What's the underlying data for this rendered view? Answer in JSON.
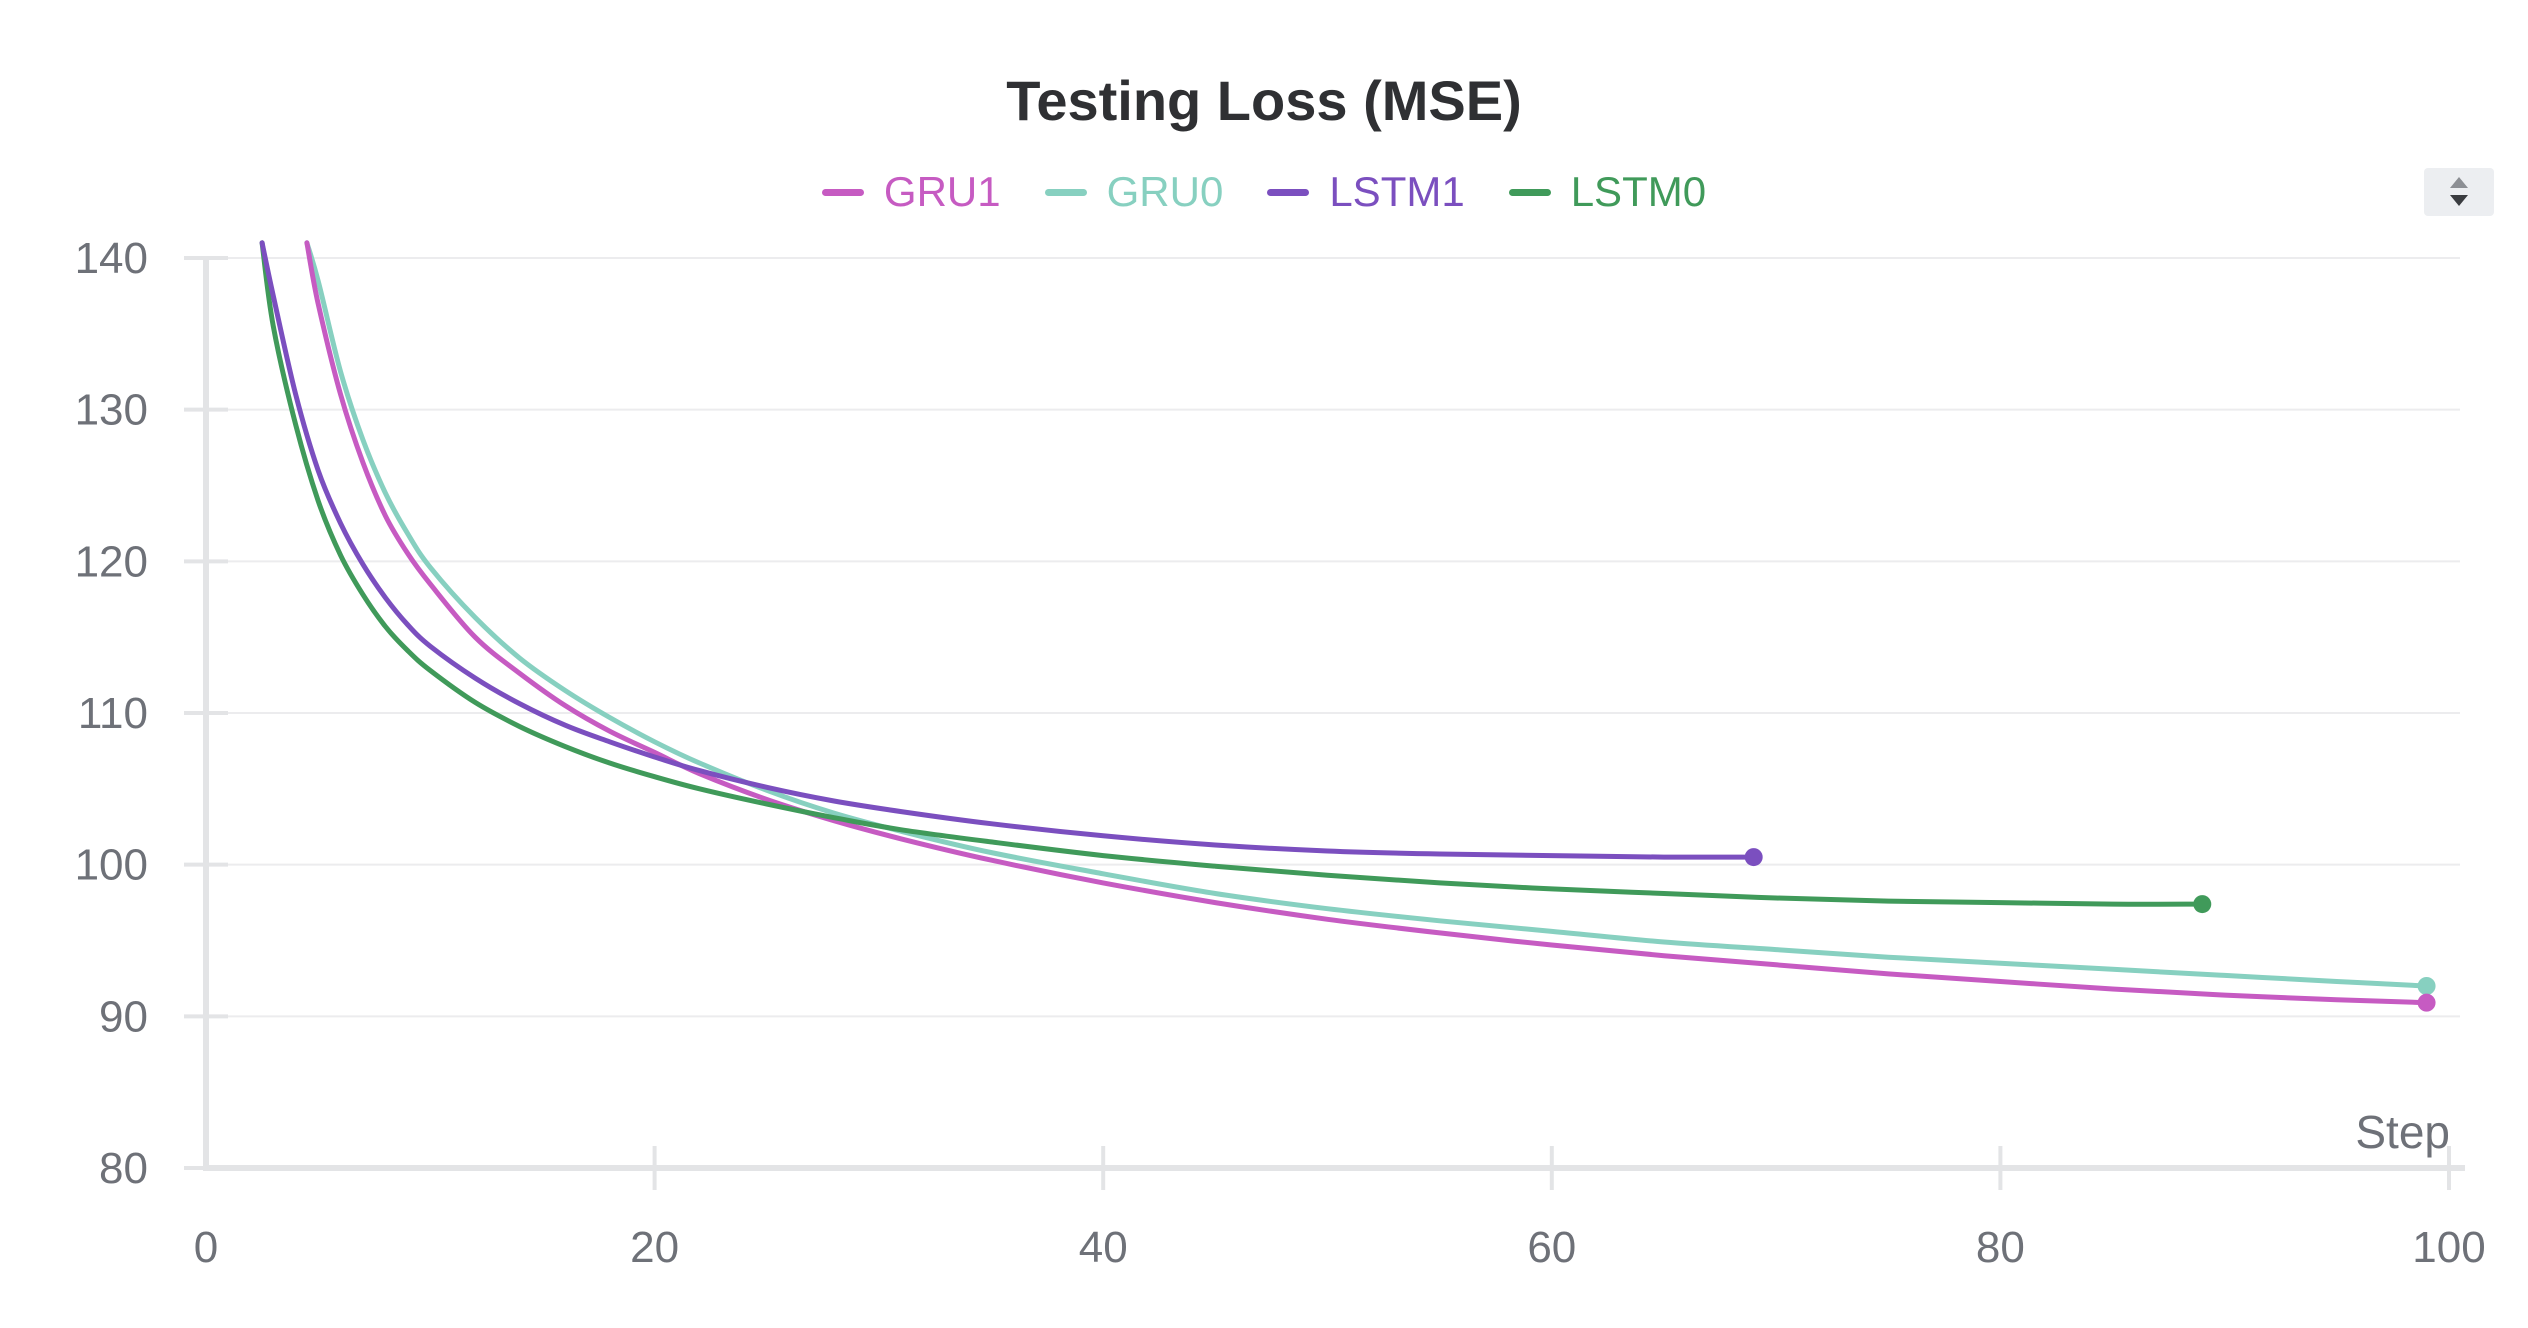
{
  "chart_data": {
    "type": "line",
    "title": "Testing Loss (MSE)",
    "xlabel": "Step",
    "ylabel": "",
    "xlim": [
      0,
      100
    ],
    "ylim": [
      80,
      141
    ],
    "xticks": [
      0,
      20,
      40,
      60,
      80,
      100
    ],
    "yticks": [
      80,
      90,
      100,
      110,
      120,
      130,
      140
    ],
    "legend_position": "top-center",
    "grid": true,
    "series": [
      {
        "name": "GRU1",
        "color": "#c65bc2",
        "x": [
          4.5,
          5,
          6,
          7,
          8,
          9,
          10,
          12,
          14,
          16,
          18,
          20,
          22,
          25,
          28,
          31,
          35,
          40,
          45,
          50,
          55,
          60,
          65,
          70,
          75,
          80,
          85,
          90,
          95,
          99
        ],
        "y": [
          141,
          137,
          131,
          126.5,
          123,
          120.5,
          118.5,
          115,
          112.6,
          110.5,
          108.8,
          107.4,
          106,
          104.3,
          102.9,
          101.7,
          100.3,
          98.8,
          97.5,
          96.4,
          95.5,
          94.7,
          94,
          93.4,
          92.8,
          92.3,
          91.8,
          91.4,
          91.1,
          90.9
        ]
      },
      {
        "name": "GRU0",
        "color": "#87d0c0",
        "x": [
          4.5,
          5,
          6,
          7,
          8,
          9,
          10,
          12,
          14,
          16,
          18,
          20,
          22,
          25,
          28,
          31,
          35,
          40,
          45,
          50,
          55,
          60,
          65,
          70,
          75,
          80,
          85,
          90,
          95,
          99
        ],
        "y": [
          141,
          138.5,
          132.5,
          128,
          124.5,
          121.8,
          119.6,
          116.3,
          113.6,
          111.5,
          109.7,
          108.1,
          106.7,
          104.9,
          103.4,
          102.2,
          100.8,
          99.4,
          98.1,
          97.1,
          96.3,
          95.6,
          94.9,
          94.4,
          93.9,
          93.5,
          93.1,
          92.7,
          92.3,
          92.0
        ]
      },
      {
        "name": "LSTM1",
        "color": "#7b4fbf",
        "x": [
          2.5,
          3,
          4,
          5,
          6,
          7,
          8,
          9,
          10,
          12,
          14,
          16,
          18,
          20,
          22,
          25,
          28,
          31,
          35,
          40,
          45,
          50,
          55,
          60,
          65,
          69
        ],
        "y": [
          141,
          137.5,
          131,
          126,
          122.5,
          119.8,
          117.6,
          115.8,
          114.4,
          112.3,
          110.6,
          109.2,
          108.1,
          107.1,
          106.2,
          105.1,
          104.2,
          103.5,
          102.7,
          101.9,
          101.3,
          100.9,
          100.7,
          100.6,
          100.5,
          100.5
        ]
      },
      {
        "name": "LSTM0",
        "color": "#409a5a",
        "x": [
          2.5,
          3,
          4,
          5,
          6,
          7,
          8,
          9,
          10,
          12,
          14,
          16,
          18,
          20,
          22,
          25,
          28,
          31,
          35,
          40,
          45,
          50,
          55,
          60,
          65,
          70,
          75,
          80,
          85,
          89
        ],
        "y": [
          141,
          135.5,
          129,
          124,
          120.4,
          117.8,
          115.7,
          114.1,
          112.8,
          110.7,
          109.1,
          107.8,
          106.7,
          105.8,
          105,
          104,
          103.1,
          102.3,
          101.5,
          100.6,
          99.9,
          99.3,
          98.8,
          98.4,
          98.1,
          97.8,
          97.6,
          97.5,
          97.4,
          97.4
        ]
      }
    ]
  },
  "ui": {
    "scroll_toggle_icon": "sort-arrows-icon"
  }
}
